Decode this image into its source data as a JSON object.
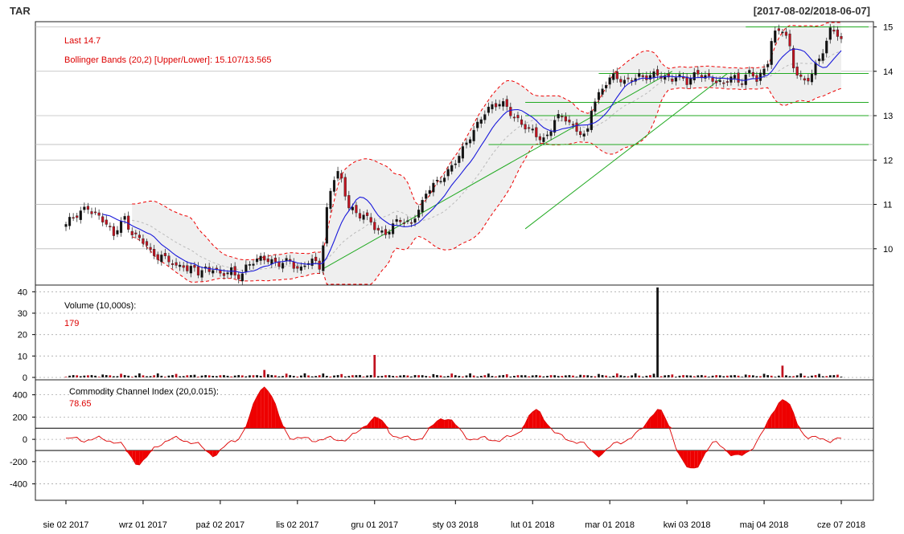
{
  "header": {
    "ticker": "TAR",
    "date_range": "[2017-08-02/2018-06-07]"
  },
  "chart_data": [
    {
      "type": "candlestick",
      "panel": "price",
      "legend": {
        "last": "Last 14.7",
        "bollinger": "Bollinger Bands (20,2) [Upper/Lower]: 15.107/13.565"
      },
      "ylim": [
        9.2,
        15.1
      ],
      "yticks": [
        10,
        11,
        12,
        13,
        14,
        15
      ],
      "n": 212,
      "closes": [
        10.55,
        10.7,
        10.75,
        10.85,
        10.95,
        10.8,
        10.75,
        10.65,
        10.5,
        10.3,
        10.55,
        10.7,
        10.4,
        10.3,
        10.2,
        10.15,
        9.9,
        9.8,
        9.85,
        9.75,
        9.7,
        9.55,
        9.65,
        9.5,
        9.6,
        9.45,
        9.55,
        9.5,
        9.6,
        9.4,
        9.45,
        9.55,
        9.35,
        9.4,
        9.6,
        9.7,
        9.75,
        9.8,
        9.75,
        9.7,
        9.65,
        9.7,
        9.75,
        9.6,
        9.5,
        9.65,
        9.75,
        9.7,
        9.55,
        10.8,
        11.4,
        11.8,
        11.5,
        11.0,
        10.9,
        10.7,
        10.8,
        10.65,
        10.5,
        10.4,
        10.3,
        10.45,
        10.6,
        10.65,
        10.6,
        10.55,
        10.8,
        11.0,
        11.3,
        11.45,
        11.5,
        11.6,
        11.75,
        11.9,
        12.1,
        12.3,
        12.5,
        12.7,
        12.9,
        13.1,
        13.2,
        13.25,
        13.3,
        13.2,
        13.0,
        12.9,
        12.8,
        12.7,
        12.65,
        12.5,
        12.45,
        12.6,
        12.9,
        13.0,
        12.95,
        12.8,
        12.7,
        12.6,
        12.5,
        13.2,
        13.4,
        13.6,
        13.8,
        13.9,
        13.85,
        13.75,
        13.8,
        13.85,
        13.9,
        13.85,
        13.9,
        13.95,
        13.9,
        13.85,
        13.8,
        13.9,
        13.85,
        13.75,
        13.9,
        13.95,
        13.9,
        13.85,
        13.8,
        13.75,
        13.7,
        13.9,
        13.85,
        13.7,
        13.9,
        14.0,
        13.8,
        13.95,
        14.1,
        14.8,
        14.9,
        14.95,
        14.7,
        14.1,
        13.9,
        13.75,
        13.85,
        14.1,
        14.3,
        14.6,
        14.95,
        14.9,
        14.7
      ],
      "bb_range_start_index": 18,
      "trendlines": [
        {
          "from": [
            70,
            9.55
          ],
          "to": [
            165,
            14.0
          ]
        },
        {
          "from": [
            125,
            10.45
          ],
          "to": [
            180,
            13.95
          ]
        }
      ],
      "support_resistance": [
        15.0,
        13.95,
        13.3,
        13.0,
        12.35
      ]
    },
    {
      "type": "bar",
      "panel": "volume",
      "legend": {
        "label": "Volume (10,000s):",
        "value": "179"
      },
      "ylim": [
        0,
        42
      ],
      "yticks": [
        0,
        10,
        20,
        30,
        40
      ],
      "spikes": [
        {
          "idx": 54,
          "value": 3.5
        },
        {
          "idx": 84,
          "value": 10.5
        },
        {
          "idx": 161,
          "value": 42
        },
        {
          "idx": 195,
          "value": 5.5
        }
      ]
    },
    {
      "type": "line",
      "panel": "cci",
      "legend": {
        "label": "Commodity Channel Index (20,0.015):",
        "value": "78.65"
      },
      "ylim": [
        -540,
        520
      ],
      "yticks": [
        400,
        200,
        0,
        -200,
        -400
      ],
      "thresholds": [
        100,
        -100
      ],
      "peaks": [
        {
          "idx": 54,
          "value": 480
        },
        {
          "idx": 84,
          "value": 190
        },
        {
          "idx": 103,
          "value": 200
        },
        {
          "idx": 128,
          "value": 250
        },
        {
          "idx": 161,
          "value": 260
        },
        {
          "idx": 195,
          "value": 360
        }
      ],
      "troughs": [
        {
          "idx": 20,
          "value": -210
        },
        {
          "idx": 40,
          "value": -130
        },
        {
          "idx": 145,
          "value": -130
        },
        {
          "idx": 170,
          "value": -280
        },
        {
          "idx": 183,
          "value": -160
        }
      ]
    }
  ],
  "x_axis": {
    "labels": [
      "sie 02 2017",
      "wrz 01 2017",
      "paź 02 2017",
      "lis 02 2017",
      "gru 01 2017",
      "sty 03 2018",
      "lut 01 2018",
      "mar 01 2018",
      "kwi 03 2018",
      "maj 04 2018",
      "cze 07 2018"
    ]
  }
}
